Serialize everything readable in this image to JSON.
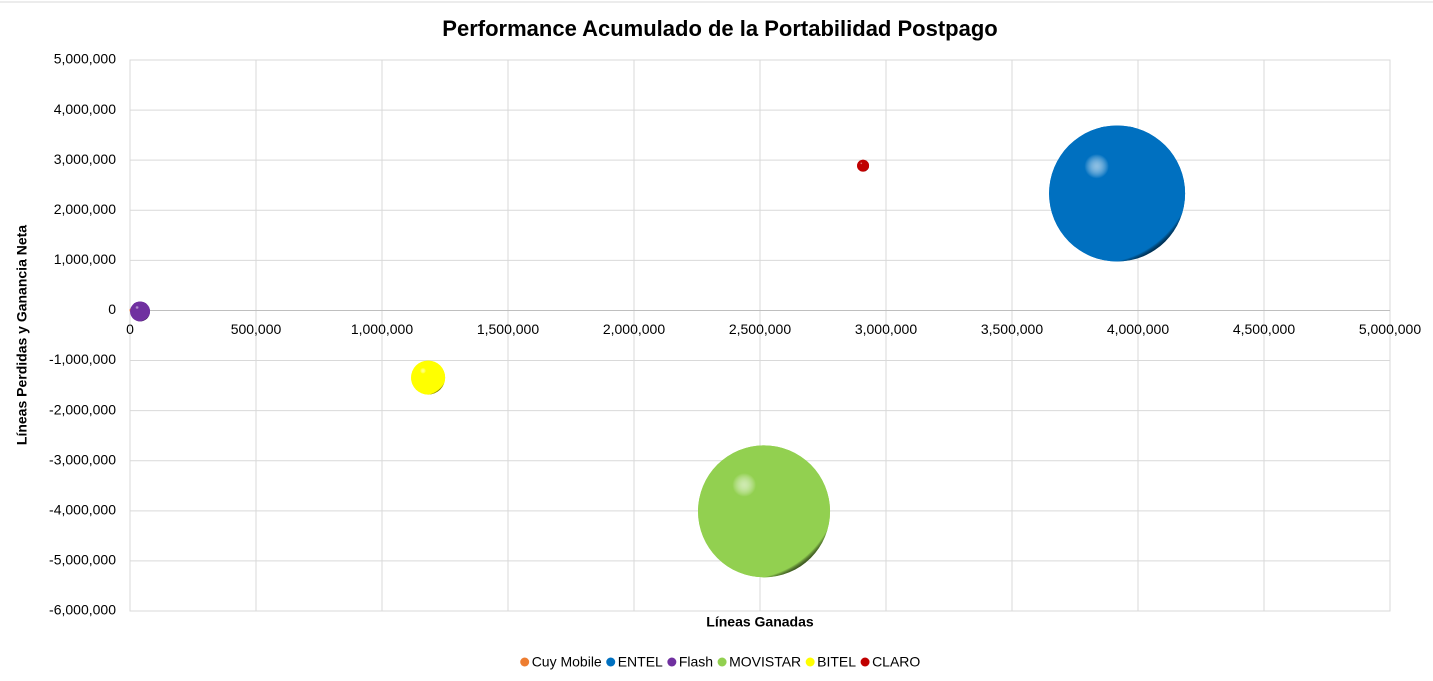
{
  "chart_data": {
    "type": "bubble",
    "title": "Performance Acumulado de la Portabilidad Postpago",
    "xlabel": "Líneas Ganadas",
    "ylabel": "Líneas Perdidas y Ganancia Neta",
    "series": [
      {
        "name": "Cuy Mobile",
        "color": "#ed7d31",
        "x": [
          5000
        ],
        "values": [
          5000
        ],
        "sizes": [
          1000
        ]
      },
      {
        "name": "ENTEL",
        "color": "#0070c0",
        "x": [
          3917000
        ],
        "values": [
          2335000
        ],
        "sizes": [
          1550000
        ]
      },
      {
        "name": "Flash",
        "color": "#7030a0",
        "x": [
          40000
        ],
        "values": [
          -20000
        ],
        "sizes": [
          33000
        ]
      },
      {
        "name": "MOVISTAR",
        "color": "#92d050",
        "x": [
          2516000
        ],
        "values": [
          -4010000
        ],
        "sizes": [
          1460000
        ]
      },
      {
        "name": "BITEL",
        "color": "#ffff00",
        "x": [
          1183000
        ],
        "values": [
          -1340000
        ],
        "sizes": [
          97000
        ]
      },
      {
        "name": "CLARO",
        "color": "#c00000",
        "x": [
          2909000
        ],
        "values": [
          2890000
        ],
        "sizes": [
          12000
        ]
      }
    ],
    "xlim": [
      0,
      5000000
    ],
    "xticks": [
      0,
      {
        "value": 500000,
        "label": "500,000"
      },
      {
        "value": 1000000,
        "label": "1,000,000"
      },
      {
        "value": 1500000,
        "label": "1,500,000"
      },
      {
        "value": 2000000,
        "label": "2,000,000"
      },
      {
        "value": 2500000,
        "label": "2,500,000"
      },
      {
        "value": 3000000,
        "label": "3,000,000"
      },
      {
        "value": 3500000,
        "label": "3,500,000"
      },
      {
        "value": 4000000,
        "label": "4,000,000"
      },
      {
        "value": 4500000,
        "label": "4,500,000"
      },
      {
        "value": 5000000,
        "label": "5,000,000"
      }
    ],
    "ylim": [
      -6000000,
      5000000
    ],
    "yticks": [
      {
        "value": -6000000,
        "label": "-6,000,000"
      },
      {
        "value": -5000000,
        "label": "-5,000,000"
      },
      {
        "value": -4000000,
        "label": "-4,000,000"
      },
      {
        "value": -3000000,
        "label": "-3,000,000"
      },
      {
        "value": -2000000,
        "label": "-2,000,000"
      },
      {
        "value": -1000000,
        "label": "-1,000,000"
      },
      0,
      {
        "value": 1000000,
        "label": "1,000,000"
      },
      {
        "value": 2000000,
        "label": "2,000,000"
      },
      {
        "value": 3000000,
        "label": "3,000,000"
      },
      {
        "value": 4000000,
        "label": "4,000,000"
      },
      {
        "value": 5000000,
        "label": "5,000,000"
      }
    ],
    "grid": true,
    "legend": "bottom"
  }
}
